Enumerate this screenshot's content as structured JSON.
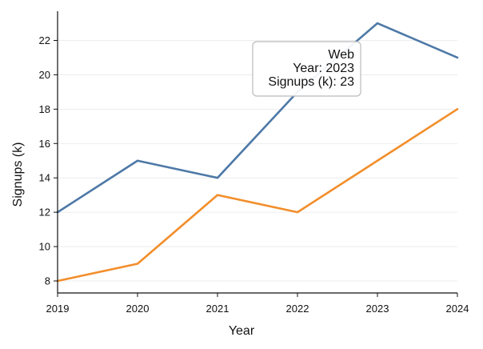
{
  "chart_data": {
    "type": "line",
    "title": "",
    "xlabel": "Year",
    "ylabel": "Signups (k)",
    "x": [
      2019,
      2020,
      2021,
      2022,
      2023,
      2024
    ],
    "xlim": [
      2019,
      2024
    ],
    "ylim": [
      7.3,
      23.7
    ],
    "yticks": [
      8,
      10,
      12,
      14,
      16,
      18,
      20,
      22
    ],
    "grid": true,
    "series": [
      {
        "name": "Web",
        "color": "#4e79a7",
        "values": [
          12,
          15,
          14,
          19,
          23,
          21
        ]
      },
      {
        "color": "#f28e2b",
        "values": [
          8,
          9,
          13,
          12,
          15,
          18
        ]
      }
    ],
    "tooltip": {
      "series_label": "Web",
      "year_line": "Year: 2023",
      "value_line": "Signups (k): 23"
    }
  }
}
